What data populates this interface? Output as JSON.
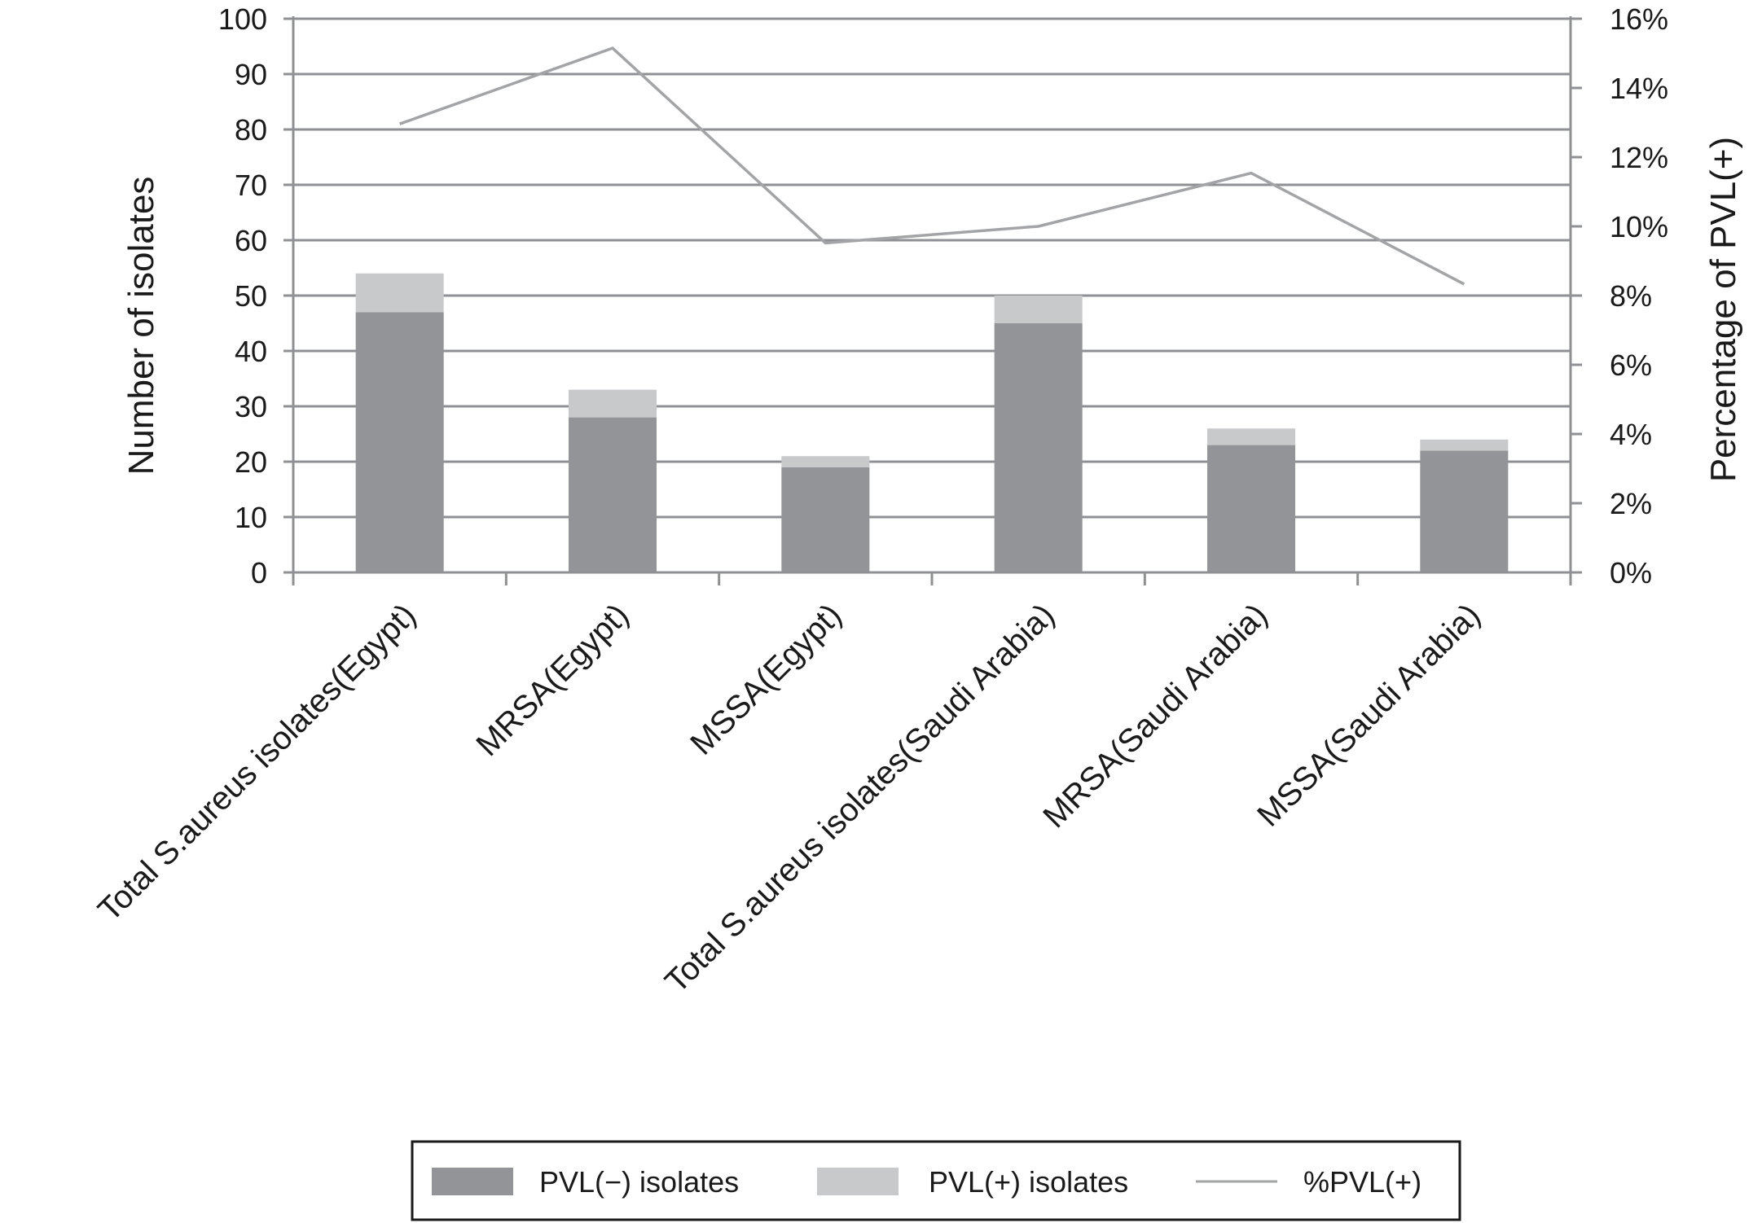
{
  "chart_data": {
    "type": "bar",
    "stacked": true,
    "categories": [
      "Total S.aureus isolates(Egypt)",
      "MRSA(Egypt)",
      "MSSA(Egypt)",
      "Total S.aureus isolates(Saudi Arabia)",
      "MRSA(Saudi Arabia)",
      "MSSA(Saudi Arabia)"
    ],
    "series": [
      {
        "name": "PVL(−) isolates",
        "type": "bar",
        "axis": "left",
        "color": "#939498",
        "values": [
          47,
          28,
          19,
          45,
          23,
          22
        ]
      },
      {
        "name": "PVL(+) isolates",
        "type": "bar",
        "axis": "left",
        "color": "#c8c9cb",
        "values": [
          7,
          5,
          2,
          5,
          3,
          2
        ]
      },
      {
        "name": "%PVL(+)",
        "type": "line",
        "axis": "right",
        "color": "#a3a4a6",
        "values": [
          12.96,
          15.15,
          9.52,
          10.0,
          11.54,
          8.33
        ]
      }
    ],
    "ylabel": "Number of isolates",
    "y2label": "Percentage of PVL(+)",
    "ylim": [
      0,
      100
    ],
    "yticks": [
      "0",
      "10",
      "20",
      "30",
      "40",
      "50",
      "60",
      "70",
      "80",
      "90",
      "100"
    ],
    "y2lim": [
      0,
      16
    ],
    "y2ticks": [
      "0%",
      "2%",
      "4%",
      "6%",
      "8%",
      "10%",
      "12%",
      "14%",
      "16%"
    ],
    "grid": true,
    "legend_position": "bottom"
  }
}
